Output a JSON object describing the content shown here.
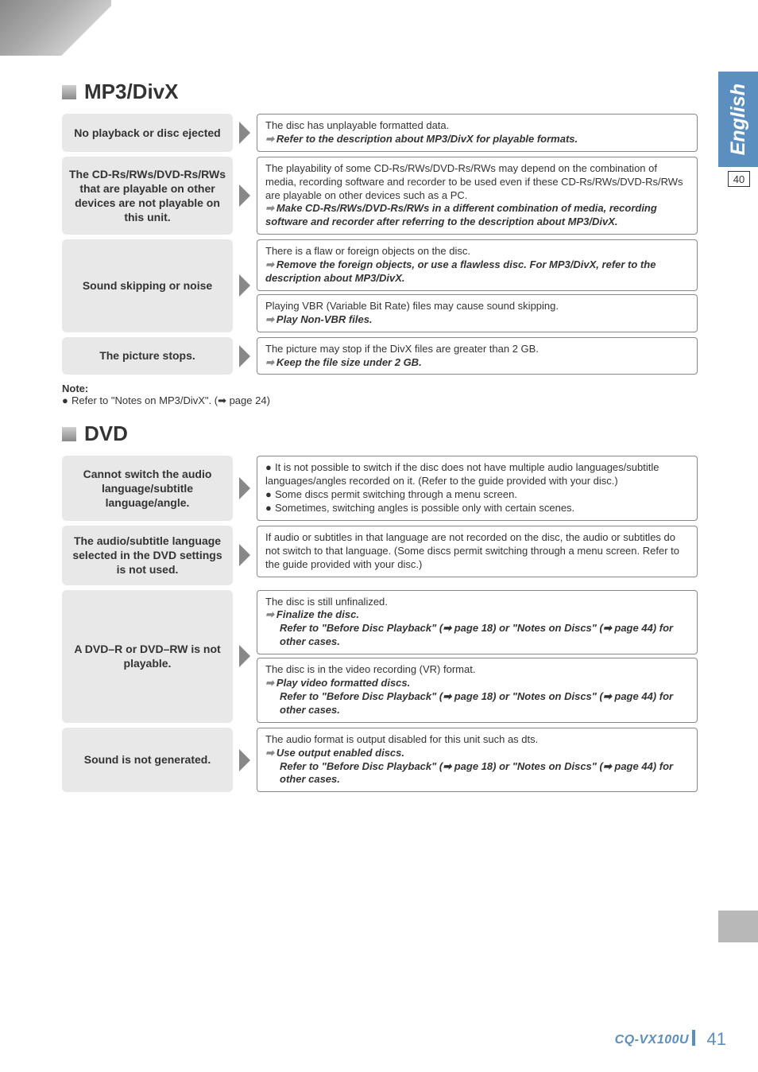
{
  "colors": {
    "tab_bg": "#5a8fc0",
    "symptom_bg": "#e8e8e8",
    "border": "#888888",
    "text": "#333333",
    "arrow_grey": "#888888"
  },
  "side_tab": {
    "label": "English",
    "page_box": "40"
  },
  "sections": {
    "mp3divx": {
      "title": "MP3/DivX",
      "rows": [
        {
          "symptom": "No playback or disc ejected",
          "causes": [
            {
              "desc": "The disc has unplayable formatted data.",
              "sol": "Refer to the description about MP3/DivX for playable formats."
            }
          ]
        },
        {
          "symptom": "The CD-Rs/RWs/DVD-Rs/RWs that are playable on other devices are not playable on this unit.",
          "causes": [
            {
              "desc": "The playability of some CD-Rs/RWs/DVD-Rs/RWs may depend on the combination of media, recording software and recorder to be used even if these CD-Rs/RWs/DVD-Rs/RWs are playable on other devices such as a PC.",
              "sol": "Make CD-Rs/RWs/DVD-Rs/RWs in a different combination of media, recording software and recorder after referring to the description about MP3/DivX."
            }
          ]
        },
        {
          "symptom": "Sound skipping or noise",
          "causes": [
            {
              "desc": "There is a flaw or foreign objects on the disc.",
              "sol": "Remove the foreign objects, or use a flawless disc. For MP3/DivX, refer to the description about MP3/DivX."
            },
            {
              "desc": "Playing VBR (Variable Bit Rate) files may cause sound skipping.",
              "sol": "Play Non-VBR files."
            }
          ]
        },
        {
          "symptom": "The picture stops.",
          "causes": [
            {
              "desc": "The picture may stop if the DivX files are greater than 2 GB.",
              "sol": "Keep the file size under 2 GB."
            }
          ]
        }
      ],
      "note_title": "Note:",
      "note_body": "Refer to \"Notes on MP3/DivX\". (➡ page 24)"
    },
    "dvd": {
      "title": "DVD",
      "rows": [
        {
          "symptom": "Cannot switch the audio language/subtitle language/angle.",
          "causes": [
            {
              "bullets": [
                "It is not possible to switch if the disc does not have multiple audio languages/subtitle languages/angles recorded on it. (Refer to the guide provided with your disc.)",
                "Some discs permit switching through a menu screen.",
                "Sometimes, switching angles is possible only with certain scenes."
              ]
            }
          ]
        },
        {
          "symptom": "The audio/subtitle language selected in the DVD settings is not used.",
          "causes": [
            {
              "desc": "If audio or subtitles in that language are not recorded on the disc, the audio or subtitles do not switch to that language. (Some discs permit switching through a menu screen. Refer to the guide provided with your disc.)"
            }
          ]
        },
        {
          "symptom": "A DVD–R or DVD–RW is not playable.",
          "causes": [
            {
              "desc": "The disc is still unfinalized.",
              "sol": "Finalize the disc.",
              "ref": "Refer to \"Before Disc Playback\" (➡ page 18) or \"Notes on Discs\" (➡ page 44) for other cases."
            },
            {
              "desc": "The disc is in the video recording (VR) format.",
              "sol": "Play video formatted discs.",
              "ref": "Refer to \"Before Disc Playback\" (➡ page 18) or \"Notes on Discs\" (➡ page 44) for other cases."
            }
          ]
        },
        {
          "symptom": "Sound is not generated.",
          "causes": [
            {
              "desc": "The audio format is output disabled for this unit such as dts.",
              "sol": "Use output enabled discs.",
              "ref": "Refer to \"Before Disc Playback\" (➡ page 18) or \"Notes on Discs\" (➡ page 44) for other cases."
            }
          ]
        }
      ]
    }
  },
  "footer": {
    "model": "CQ-VX100U",
    "page": "41"
  }
}
